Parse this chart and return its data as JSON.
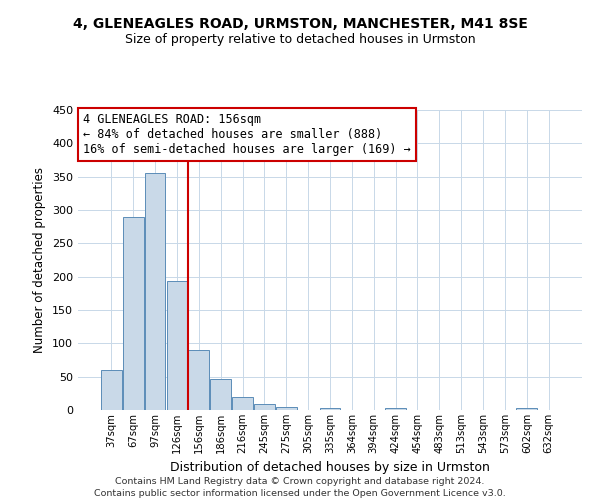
{
  "title": "4, GLENEAGLES ROAD, URMSTON, MANCHESTER, M41 8SE",
  "subtitle": "Size of property relative to detached houses in Urmston",
  "xlabel": "Distribution of detached houses by size in Urmston",
  "ylabel": "Number of detached properties",
  "bar_labels": [
    "37sqm",
    "67sqm",
    "97sqm",
    "126sqm",
    "156sqm",
    "186sqm",
    "216sqm",
    "245sqm",
    "275sqm",
    "305sqm",
    "335sqm",
    "364sqm",
    "394sqm",
    "424sqm",
    "454sqm",
    "483sqm",
    "513sqm",
    "543sqm",
    "573sqm",
    "602sqm",
    "632sqm"
  ],
  "bar_values": [
    60,
    290,
    355,
    193,
    90,
    46,
    20,
    9,
    5,
    0,
    3,
    0,
    0,
    3,
    0,
    0,
    0,
    0,
    0,
    3,
    0
  ],
  "bar_color": "#c9d9e8",
  "bar_edge_color": "#5b8db8",
  "vline_color": "#cc0000",
  "annotation_title": "4 GLENEAGLES ROAD: 156sqm",
  "annotation_line1": "← 84% of detached houses are smaller (888)",
  "annotation_line2": "16% of semi-detached houses are larger (169) →",
  "annotation_box_color": "#cc0000",
  "ylim": [
    0,
    450
  ],
  "yticks": [
    0,
    50,
    100,
    150,
    200,
    250,
    300,
    350,
    400,
    450
  ],
  "footnote1": "Contains HM Land Registry data © Crown copyright and database right 2024.",
  "footnote2": "Contains public sector information licensed under the Open Government Licence v3.0.",
  "background_color": "#ffffff",
  "grid_color": "#c8d8e8"
}
